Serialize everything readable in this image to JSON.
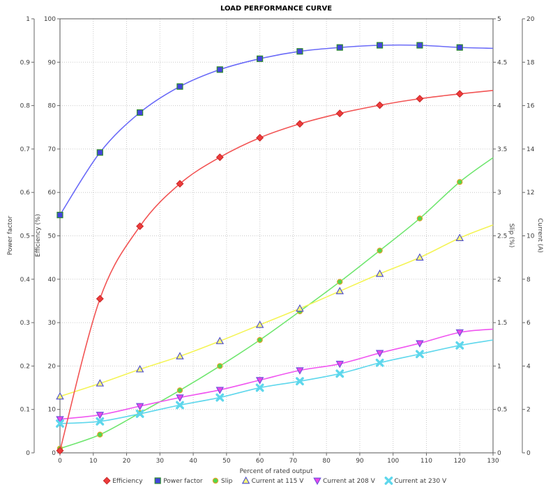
{
  "title": "LOAD PERFORMANCE CURVE",
  "chart_data": {
    "type": "line",
    "title": "LOAD PERFORMANCE CURVE",
    "xlabel": "Percent of rated output",
    "grid": true,
    "legend_position": "bottom",
    "xlim": [
      0,
      130
    ],
    "x_ticks": [
      0,
      10,
      20,
      30,
      40,
      50,
      60,
      70,
      80,
      90,
      100,
      110,
      120,
      130
    ],
    "axes": [
      {
        "id": "power_factor",
        "label": "Power factor",
        "side": "left-outer",
        "min": 0,
        "max": 1,
        "ticks": [
          0,
          0.1,
          0.2,
          0.3,
          0.4,
          0.5,
          0.6,
          0.7,
          0.8,
          0.9,
          1
        ]
      },
      {
        "id": "efficiency",
        "label": "Efficiency (%)",
        "side": "left-inner",
        "min": 0,
        "max": 100,
        "ticks": [
          0,
          10,
          20,
          30,
          40,
          50,
          60,
          70,
          80,
          90,
          100
        ]
      },
      {
        "id": "slip",
        "label": "Slip (%)",
        "side": "right-inner",
        "min": 0,
        "max": 5,
        "ticks": [
          0,
          0.5,
          1,
          1.5,
          2,
          2.5,
          3,
          3.5,
          4,
          4.5,
          5
        ]
      },
      {
        "id": "current",
        "label": "Current (A)",
        "side": "right-outer",
        "min": 0,
        "max": 20,
        "ticks": [
          0,
          2,
          4,
          6,
          8,
          10,
          12,
          14,
          16,
          18,
          20
        ]
      }
    ],
    "x": [
      0,
      12,
      24,
      36,
      48,
      60,
      72,
      84,
      96,
      108,
      120
    ],
    "series": [
      {
        "name": "Efficiency",
        "axis": "efficiency",
        "marker": "diamond",
        "line_color": "#f25454",
        "marker_fill": "#ee3b3b",
        "marker_stroke": "#c62828",
        "values": [
          0.5,
          35.5,
          52.2,
          62.0,
          68.1,
          72.6,
          75.8,
          78.2,
          80.1,
          81.6,
          82.7
        ],
        "trend_end": [
          130,
          83.5
        ]
      },
      {
        "name": "Power factor",
        "axis": "power_factor",
        "marker": "square",
        "line_color": "#6a6af8",
        "marker_fill": "#4444dd",
        "marker_stroke": "#2e8b2e",
        "values": [
          0.548,
          0.692,
          0.784,
          0.844,
          0.883,
          0.908,
          0.925,
          0.934,
          0.939,
          0.939,
          0.934
        ],
        "trend_end": [
          130,
          0.932
        ]
      },
      {
        "name": "Slip",
        "axis": "slip",
        "marker": "circle",
        "line_color": "#6fe66f",
        "marker_fill": "#4fd84f",
        "marker_stroke": "#e2a32b",
        "values": [
          0.05,
          0.21,
          0.46,
          0.72,
          1.0,
          1.3,
          1.63,
          1.97,
          2.33,
          2.7,
          3.12
        ],
        "trend_end": [
          130,
          3.4
        ]
      },
      {
        "name": "Current at 115 V",
        "axis": "current",
        "marker": "triangle-up",
        "line_color": "#f4f455",
        "marker_fill": "#f8f876",
        "marker_stroke": "#4949cf",
        "values": [
          2.6,
          3.2,
          3.85,
          4.45,
          5.15,
          5.9,
          6.65,
          7.45,
          8.25,
          9.0,
          9.9
        ],
        "trend_end": [
          130,
          10.5
        ]
      },
      {
        "name": "Current at 208 V",
        "axis": "current",
        "marker": "triangle-down",
        "line_color": "#f055f0",
        "marker_fill": "#ea46ea",
        "marker_stroke": "#6b50da",
        "values": [
          1.55,
          1.75,
          2.15,
          2.55,
          2.9,
          3.35,
          3.8,
          4.1,
          4.6,
          5.05,
          5.55
        ],
        "trend_end": [
          130,
          5.7
        ]
      },
      {
        "name": "Current at 230 V",
        "axis": "current",
        "marker": "x-cross",
        "line_color": "#5ed7ec",
        "marker_fill": "#5ed7ec",
        "marker_stroke": "#5ed7ec",
        "values": [
          1.35,
          1.45,
          1.8,
          2.2,
          2.55,
          3.0,
          3.3,
          3.65,
          4.15,
          4.55,
          4.95
        ],
        "trend_end": [
          130,
          5.2
        ]
      }
    ],
    "colors": {
      "grid": "#c9c9c9",
      "axis_line": "#666666",
      "plot_border": "#555555",
      "background": "#ffffff",
      "tick_text": "#3c3c3c"
    }
  }
}
